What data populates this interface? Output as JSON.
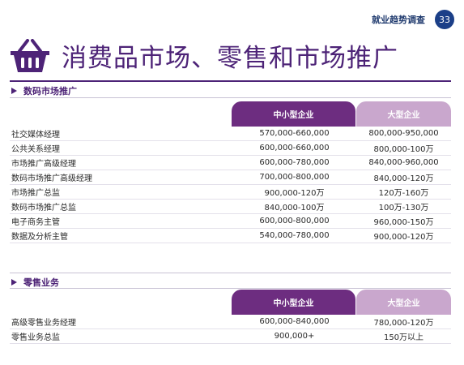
{
  "header": {
    "survey_label": "就业趋势调查",
    "page_number": "33"
  },
  "title": "消费品市场、零售和市场推广",
  "columns": {
    "sme": "中小型企业",
    "large": "大型企业"
  },
  "sections": [
    {
      "heading": "数码市场推广",
      "rows": [
        {
          "role": "社交媒体经理",
          "sme": "570,000-660,000",
          "large": "800,000-950,000"
        },
        {
          "role": "公共关系经理",
          "sme": "600,000-660,000",
          "large": "800,000-100万"
        },
        {
          "role": "市场推广高级经理",
          "sme": "600,000-780,000",
          "large": "840,000-960,000"
        },
        {
          "role": "数码市场推广高级经理",
          "sme": "700,000-800,000",
          "large": "840,000-120万"
        },
        {
          "role": "市场推广总监",
          "sme": "900,000-120万",
          "large": "120万-160万"
        },
        {
          "role": "数码市场推广总监",
          "sme": "840,000-100万",
          "large": "100万-130万"
        },
        {
          "role": "电子商务主管",
          "sme": "600,000-800,000",
          "large": "960,000-150万"
        },
        {
          "role": "数据及分析主管",
          "sme": "540,000-780,000",
          "large": "900,000-120万"
        }
      ]
    },
    {
      "heading": "零售业务",
      "rows": [
        {
          "role": "高级零售业务经理",
          "sme": "600,000-840,000",
          "large": "780,000-120万"
        },
        {
          "role": "零售业务总监",
          "sme": "900,000+",
          "large": "150万以上"
        }
      ]
    }
  ],
  "colors": {
    "purple": "#4d2377",
    "sme_tab": "#6d2d80",
    "large_tab": "#c9a7cd",
    "page_badge": "#1b3f88"
  },
  "icons": {
    "title_icon": "shopping-basket-icon"
  }
}
